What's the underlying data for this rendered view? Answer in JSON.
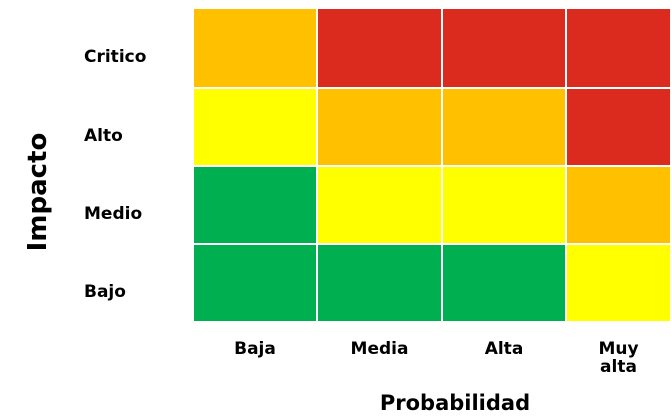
{
  "chart_data": {
    "type": "heatmap",
    "title": "",
    "xlabel": "Probabilidad",
    "ylabel": "Impacto",
    "x_categories": [
      "Baja",
      "Media",
      "Alta",
      "Muy alta"
    ],
    "y_categories": [
      "Critico",
      "Alto",
      "Medio",
      "Bajo"
    ],
    "levels": {
      "green": "#00b050",
      "yellow": "#ffff00",
      "orange": "#ffc000",
      "red": "#db2b1e"
    },
    "cells": [
      [
        "orange",
        "red",
        "red",
        "red"
      ],
      [
        "yellow",
        "orange",
        "orange",
        "red"
      ],
      [
        "green",
        "yellow",
        "yellow",
        "orange"
      ],
      [
        "green",
        "green",
        "green",
        "yellow"
      ]
    ],
    "grid": true,
    "legend": "none"
  }
}
